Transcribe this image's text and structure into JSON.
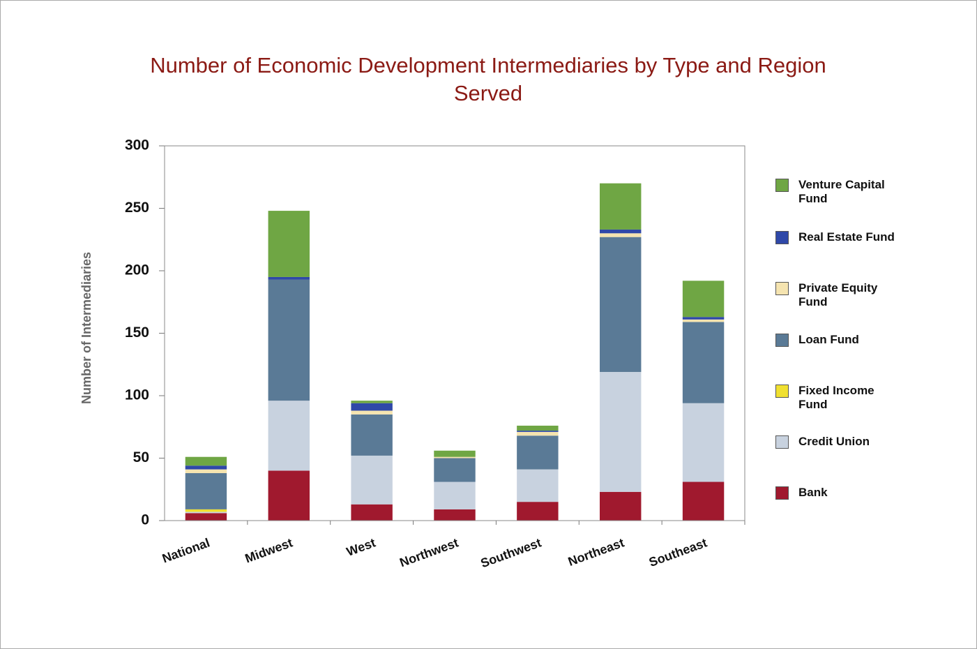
{
  "chart_data": {
    "type": "stacked_bar",
    "title": "Number of Economic Development Intermediaries by Type and Region Served",
    "y_label": "Number of Intermediaries",
    "categories": [
      "National",
      "Midwest",
      "West",
      "Northwest",
      "Southwest",
      "Northeast",
      "Southeast"
    ],
    "series": [
      {
        "name": "Bank",
        "color": "#a0192e",
        "values": [
          6,
          40,
          13,
          9,
          15,
          23,
          31
        ]
      },
      {
        "name": "Credit Union",
        "color": "#c8d2df",
        "values": [
          1,
          56,
          39,
          22,
          26,
          96,
          63
        ]
      },
      {
        "name": "Fixed Income Fund",
        "color": "#f0e030",
        "values": [
          2,
          0,
          0,
          0,
          0,
          0,
          0
        ]
      },
      {
        "name": "Loan Fund",
        "color": "#5a7a96",
        "values": [
          29,
          97,
          33,
          19,
          27,
          108,
          65
        ]
      },
      {
        "name": "Private Equity Fund",
        "color": "#f5e4b0",
        "values": [
          3,
          0,
          3,
          1,
          3,
          3,
          2
        ]
      },
      {
        "name": "Real Estate Fund",
        "color": "#2f48a8",
        "values": [
          3,
          2,
          6,
          0,
          1,
          3,
          2
        ]
      },
      {
        "name": "Venture Capital Fund",
        "color": "#6fa644",
        "values": [
          7,
          53,
          2,
          5,
          4,
          37,
          29
        ]
      }
    ],
    "ylim": [
      0,
      300
    ],
    "yticks": [
      0,
      50,
      100,
      150,
      200,
      250,
      300
    ],
    "grid": false,
    "legend": "right"
  }
}
